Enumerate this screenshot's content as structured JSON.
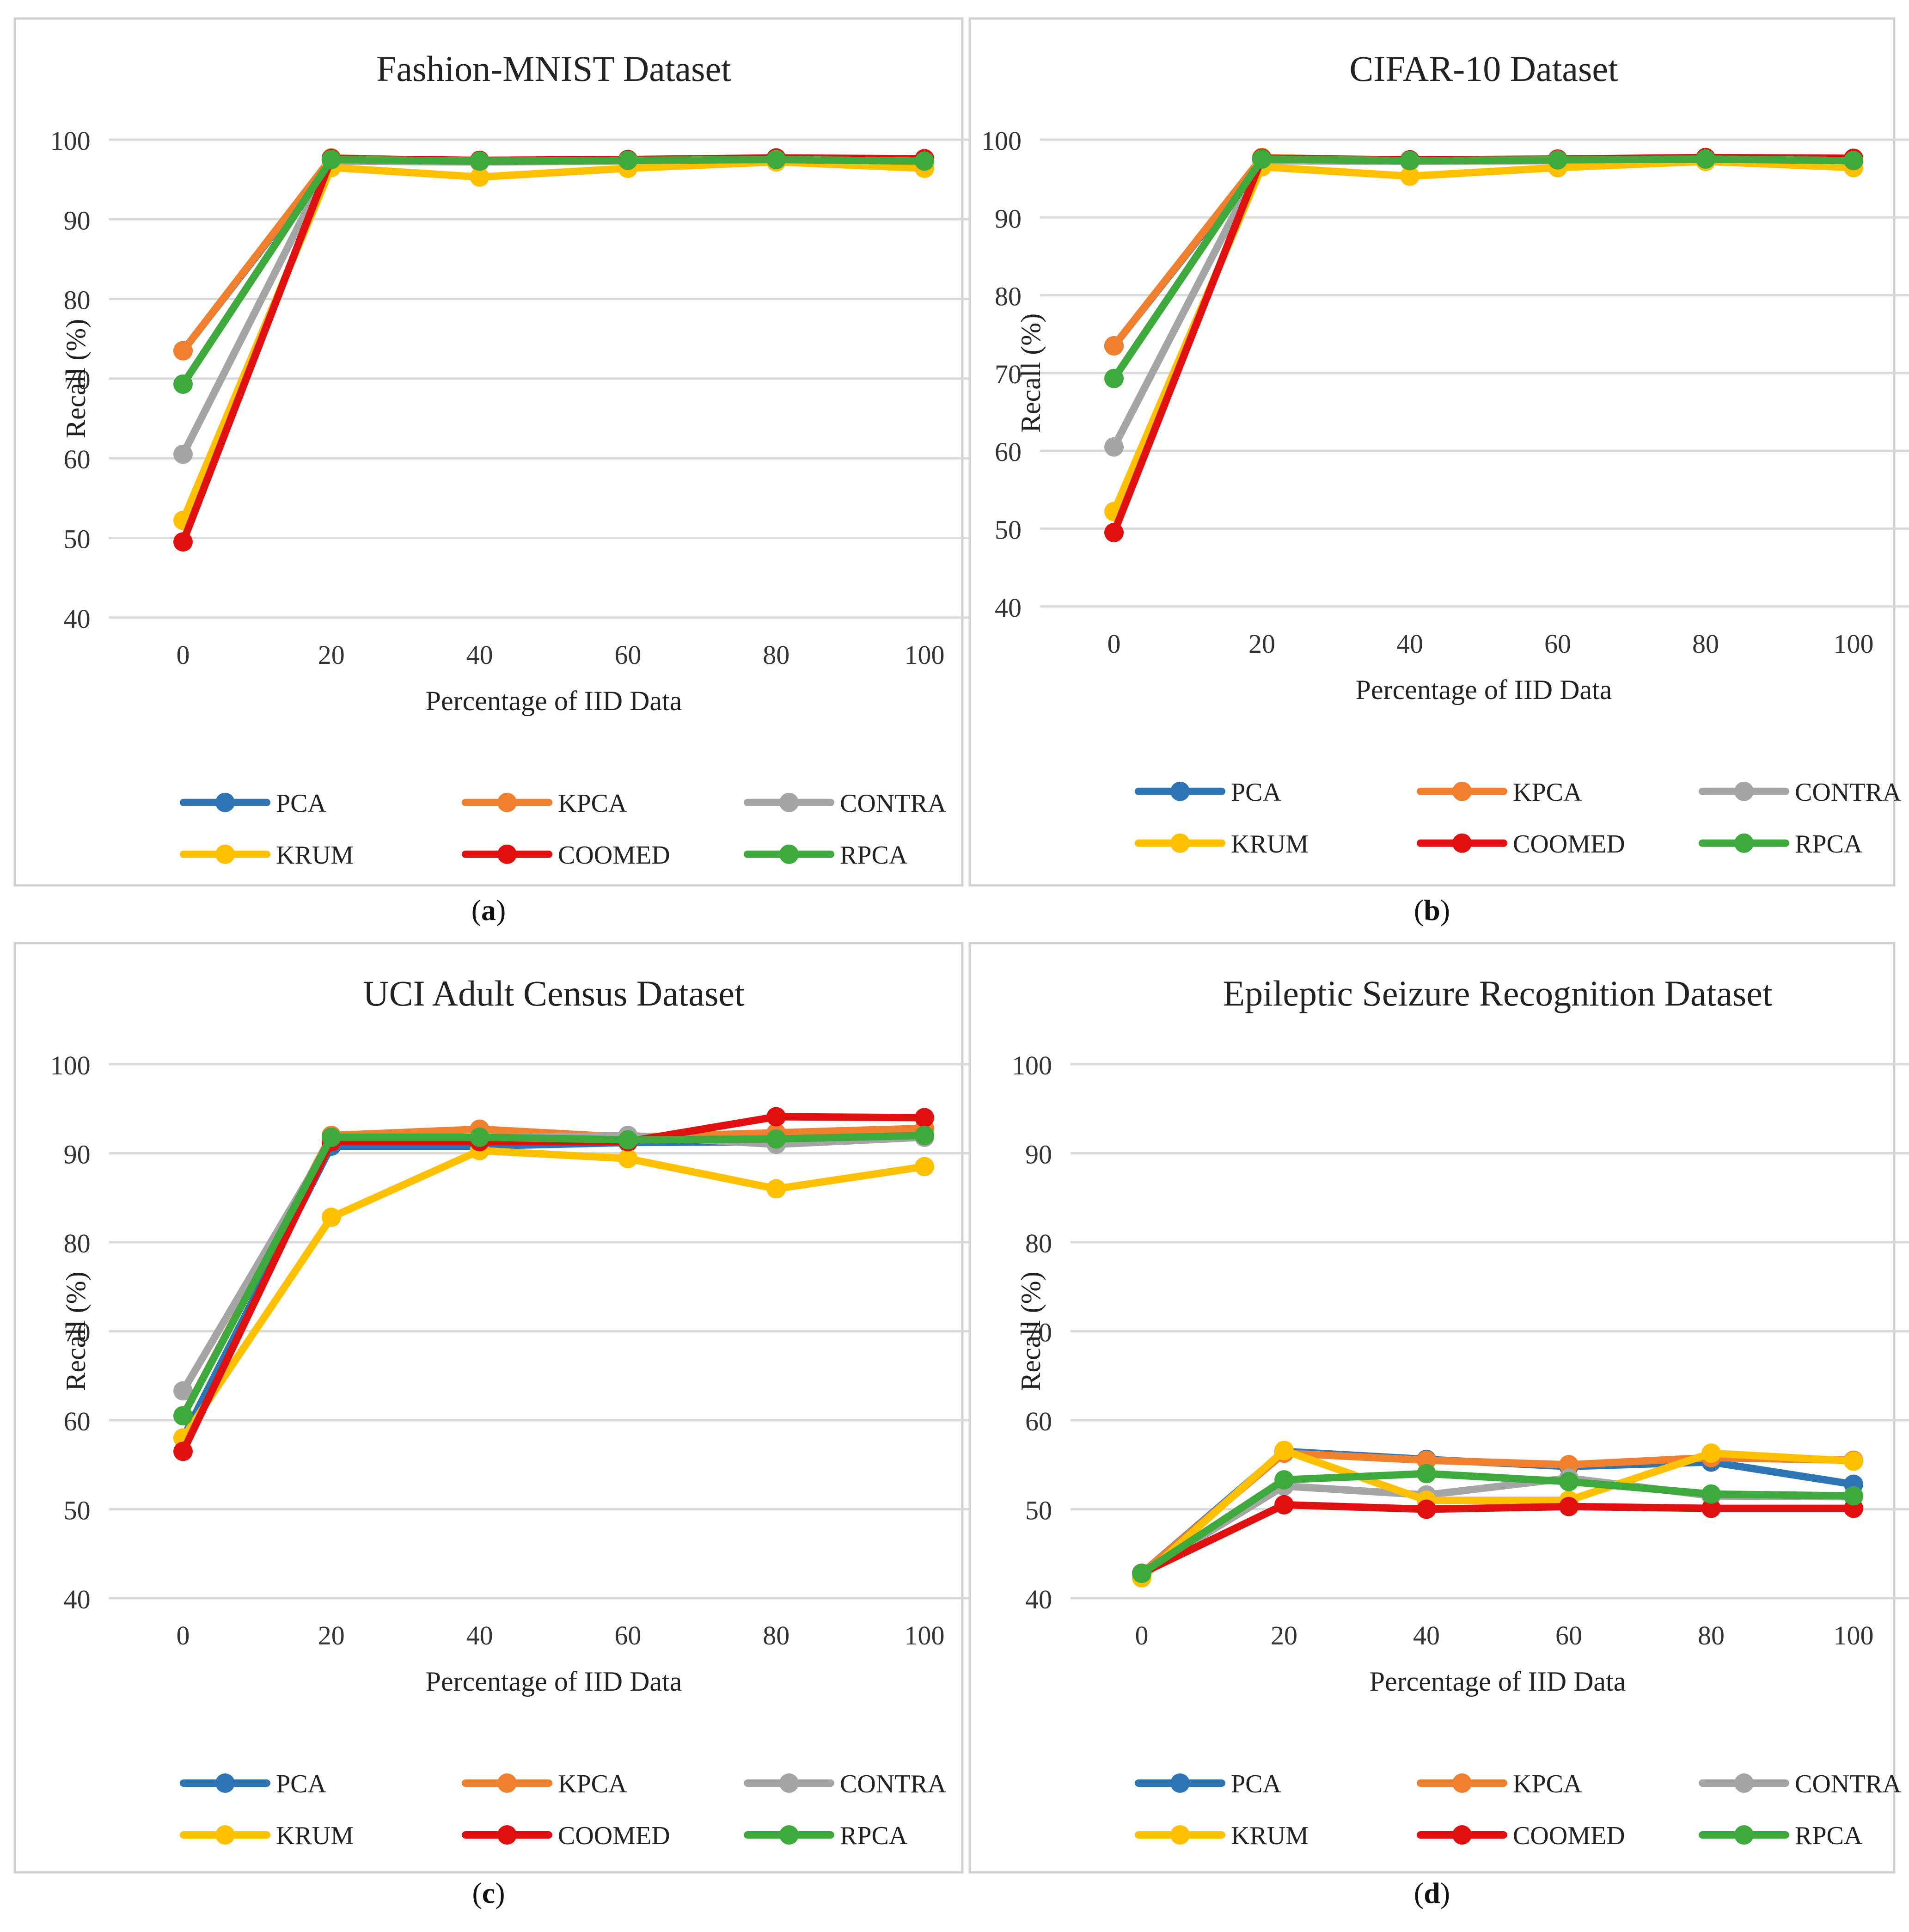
{
  "figure": {
    "x_axis_label": "Percentage of IID Data",
    "y_axis_label": "Recall (%)",
    "series_colors": {
      "PCA": "#2E75B6",
      "KPCA": "#F07F2E",
      "CONTRA": "#A5A5A5",
      "KRUM": "#FFC000",
      "COOMED": "#E01010",
      "RPCA": "#3EAA3E"
    }
  },
  "chart_data": [
    {
      "panel_label": "a",
      "type": "line",
      "title": "Fashion-MNIST Dataset",
      "xlabel": "Percentage of IID Data",
      "ylabel": "Recall (%)",
      "categories": [
        "0",
        "20",
        "40",
        "60",
        "80",
        "100"
      ],
      "ylim": [
        40,
        100
      ],
      "yticks": [
        40,
        50,
        60,
        70,
        80,
        90,
        100
      ],
      "grid": true,
      "legend": "bottom",
      "series": [
        {
          "name": "PCA",
          "values": [
            73.5,
            97.5,
            97.2,
            97.4,
            97.5,
            97.4
          ]
        },
        {
          "name": "KPCA",
          "values": [
            73.5,
            97.7,
            97.3,
            97.5,
            97.6,
            97.6
          ]
        },
        {
          "name": "CONTRA",
          "values": [
            60.5,
            97.3,
            97.2,
            97.3,
            97.4,
            97.3
          ]
        },
        {
          "name": "KRUM",
          "values": [
            52.2,
            96.5,
            95.3,
            96.4,
            97.2,
            96.4
          ]
        },
        {
          "name": "COOMED",
          "values": [
            49.5,
            97.6,
            97.4,
            97.5,
            97.7,
            97.6
          ]
        },
        {
          "name": "RPCA",
          "values": [
            69.3,
            97.5,
            97.3,
            97.4,
            97.5,
            97.3
          ]
        }
      ]
    },
    {
      "panel_label": "b",
      "type": "line",
      "title": "CIFAR-10 Dataset",
      "xlabel": "Percentage of IID Data",
      "ylabel": "Recall (%)",
      "categories": [
        "0",
        "20",
        "40",
        "60",
        "80",
        "100"
      ],
      "ylim": [
        40,
        100
      ],
      "yticks": [
        40,
        50,
        60,
        70,
        80,
        90,
        100
      ],
      "grid": true,
      "legend": "bottom",
      "series": [
        {
          "name": "PCA",
          "values": [
            73.5,
            97.5,
            97.2,
            97.4,
            97.5,
            97.4
          ]
        },
        {
          "name": "KPCA",
          "values": [
            73.5,
            97.7,
            97.3,
            97.5,
            97.6,
            97.6
          ]
        },
        {
          "name": "CONTRA",
          "values": [
            60.5,
            97.3,
            97.2,
            97.3,
            97.4,
            97.3
          ]
        },
        {
          "name": "KRUM",
          "values": [
            52.2,
            96.5,
            95.3,
            96.4,
            97.2,
            96.4
          ]
        },
        {
          "name": "COOMED",
          "values": [
            49.5,
            97.6,
            97.4,
            97.5,
            97.7,
            97.6
          ]
        },
        {
          "name": "RPCA",
          "values": [
            69.3,
            97.5,
            97.3,
            97.4,
            97.5,
            97.3
          ]
        }
      ]
    },
    {
      "panel_label": "c",
      "type": "line",
      "title": "UCI Adult Census Dataset",
      "xlabel": "Percentage of IID Data",
      "ylabel": "Recall (%)",
      "categories": [
        "0",
        "20",
        "40",
        "60",
        "80",
        "100"
      ],
      "ylim": [
        40,
        100
      ],
      "yticks": [
        40,
        50,
        60,
        70,
        80,
        90,
        100
      ],
      "grid": true,
      "legend": "bottom",
      "series": [
        {
          "name": "PCA",
          "values": [
            58.0,
            90.8,
            90.8,
            91.2,
            91.3,
            91.8
          ]
        },
        {
          "name": "KPCA",
          "values": [
            60.5,
            92.0,
            92.7,
            91.8,
            92.3,
            92.8
          ]
        },
        {
          "name": "CONTRA",
          "values": [
            63.3,
            91.5,
            91.7,
            92.0,
            91.0,
            91.8
          ]
        },
        {
          "name": "KRUM",
          "values": [
            58.0,
            82.8,
            90.3,
            89.4,
            86.0,
            88.5
          ]
        },
        {
          "name": "COOMED",
          "values": [
            56.5,
            91.3,
            91.3,
            91.3,
            94.1,
            94.0
          ]
        },
        {
          "name": "RPCA",
          "values": [
            60.5,
            91.8,
            91.8,
            91.5,
            91.6,
            92.0
          ]
        }
      ]
    },
    {
      "panel_label": "d",
      "type": "line",
      "title": "Epileptic Seizure Recognition Dataset",
      "xlabel": "Percentage of IID Data",
      "ylabel": "Recall (%)",
      "categories": [
        "0",
        "20",
        "40",
        "60",
        "80",
        "100"
      ],
      "ylim": [
        40,
        100
      ],
      "yticks": [
        40,
        50,
        60,
        70,
        80,
        90,
        100
      ],
      "grid": true,
      "legend": "bottom",
      "series": [
        {
          "name": "PCA",
          "values": [
            42.8,
            56.5,
            55.6,
            54.8,
            55.3,
            52.8
          ]
        },
        {
          "name": "KPCA",
          "values": [
            42.8,
            56.3,
            55.5,
            55.0,
            55.8,
            55.5
          ]
        },
        {
          "name": "CONTRA",
          "values": [
            42.8,
            52.6,
            51.6,
            53.5,
            51.5,
            51.4
          ]
        },
        {
          "name": "KRUM",
          "values": [
            42.3,
            56.6,
            51.0,
            51.0,
            56.3,
            55.4
          ]
        },
        {
          "name": "COOMED",
          "values": [
            42.8,
            50.5,
            50.0,
            50.3,
            50.1,
            50.1
          ]
        },
        {
          "name": "RPCA",
          "values": [
            42.8,
            53.3,
            54.0,
            53.1,
            51.7,
            51.5
          ]
        }
      ]
    }
  ]
}
